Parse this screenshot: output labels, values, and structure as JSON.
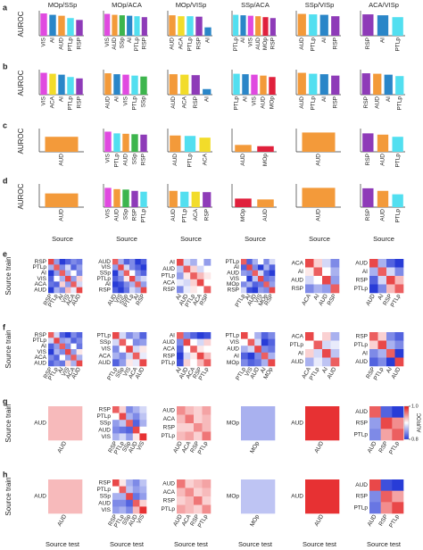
{
  "region_colors": {
    "AUD": "#f39a3a",
    "VIS": "#e04ae0",
    "AI": "#2a86c8",
    "ACA": "#f2dc2a",
    "PTLp": "#52dff0",
    "RSP": "#8e3bb8",
    "SSp": "#3db54d",
    "MOp": "#e0203c"
  },
  "colorbar": {
    "title": "AUROC",
    "lim": [
      0.8,
      1.0
    ],
    "ticks": [
      {
        "value": 1.0,
        "label": "1.0"
      },
      0.8
    ]
  },
  "chart_data": [
    {
      "type": "bar",
      "panel_label": "a",
      "ylabel": "AUROC",
      "title": "MOp/SSp",
      "ylim": [
        0.5,
        1.0
      ],
      "categories": [
        "VIS",
        "AI",
        "AUD",
        "PTLp",
        "RSP"
      ],
      "values": [
        0.98,
        0.95,
        0.93,
        0.88,
        0.84
      ]
    },
    {
      "type": "bar",
      "title": "MOp/ACA",
      "ylim": [
        0.5,
        1.0
      ],
      "categories": [
        "VIS",
        "AUD",
        "SSp",
        "AI",
        "PTLp",
        "RSP"
      ],
      "values": [
        0.97,
        0.95,
        0.94,
        0.93,
        0.92,
        0.9
      ]
    },
    {
      "type": "bar",
      "title": "MOp/VISp",
      "ylim": [
        0.5,
        1.0
      ],
      "categories": [
        "AUD",
        "ACA",
        "PTLp",
        "RSP",
        "AI"
      ],
      "values": [
        0.94,
        0.92,
        0.92,
        0.91,
        0.68
      ]
    },
    {
      "type": "bar",
      "title": "SSp/ACA",
      "ylim": [
        0.5,
        1.0
      ],
      "categories": [
        "PTLp",
        "AI",
        "VIS",
        "AUD",
        "MOp",
        "RSP"
      ],
      "values": [
        0.95,
        0.94,
        0.93,
        0.92,
        0.9,
        0.88
      ]
    },
    {
      "type": "bar",
      "title": "SSp/VISp",
      "ylim": [
        0.5,
        1.0
      ],
      "categories": [
        "AUD",
        "PTLp",
        "AI",
        "RSP"
      ],
      "values": [
        0.97,
        0.96,
        0.95,
        0.92
      ]
    },
    {
      "type": "bar",
      "title": "ACA/VISp",
      "ylim": [
        0.5,
        1.0
      ],
      "categories": [
        "RSP",
        "AI",
        "PTLp"
      ],
      "values": [
        0.96,
        0.94,
        0.9
      ]
    },
    {
      "type": "bar",
      "panel_label": "b",
      "ylabel": "AUROC",
      "ylim": [
        0.5,
        1.0
      ],
      "categories": [
        "VIS",
        "ACA",
        "AI",
        "PTLp",
        "RSP"
      ],
      "values": [
        0.97,
        0.95,
        0.93,
        0.88,
        0.85
      ]
    },
    {
      "type": "bar",
      "ylim": [
        0.5,
        1.0
      ],
      "categories": [
        "AUD",
        "AI",
        "VIS",
        "PTLp",
        "SSp"
      ],
      "values": [
        0.96,
        0.94,
        0.93,
        0.91,
        0.89
      ]
    },
    {
      "type": "bar",
      "ylim": [
        0.5,
        1.0
      ],
      "categories": [
        "AUD",
        "ACA",
        "RSP",
        "AI"
      ],
      "values": [
        0.94,
        0.93,
        0.92,
        0.62
      ]
    },
    {
      "type": "bar",
      "ylim": [
        0.5,
        1.0
      ],
      "categories": [
        "PTLp",
        "AI",
        "VIS",
        "AUD",
        "MOp"
      ],
      "values": [
        0.95,
        0.94,
        0.93,
        0.91,
        0.88
      ]
    },
    {
      "type": "bar",
      "ylim": [
        0.5,
        1.0
      ],
      "categories": [
        "AUD",
        "PTLp",
        "AI",
        "RSP"
      ],
      "values": [
        0.97,
        0.95,
        0.94,
        0.91
      ]
    },
    {
      "type": "bar",
      "ylim": [
        0.5,
        1.0
      ],
      "categories": [
        "RSP",
        "AUD",
        "AI",
        "PTLp"
      ],
      "values": [
        0.96,
        0.95,
        0.93,
        0.9
      ]
    },
    {
      "type": "bar",
      "panel_label": "c",
      "ylabel": "AUROC",
      "ylim": [
        0.5,
        1.0
      ],
      "categories": [
        "AUD"
      ],
      "values": [
        0.85
      ]
    },
    {
      "type": "bar",
      "ylim": [
        0.5,
        1.0
      ],
      "categories": [
        "VIS",
        "PTLp",
        "AUD",
        "SSp",
        "RSP"
      ],
      "values": [
        0.97,
        0.93,
        0.92,
        0.91,
        0.9
      ]
    },
    {
      "type": "bar",
      "ylim": [
        0.5,
        1.0
      ],
      "categories": [
        "AUD",
        "PTLp",
        "ACA"
      ],
      "values": [
        0.88,
        0.87,
        0.83
      ]
    },
    {
      "type": "bar",
      "ylim": [
        0.5,
        1.0
      ],
      "categories": [
        "AUD",
        "MOp"
      ],
      "values": [
        0.66,
        0.63
      ]
    },
    {
      "type": "bar",
      "ylim": [
        0.5,
        1.0
      ],
      "categories": [
        "AUD"
      ],
      "values": [
        0.95
      ]
    },
    {
      "type": "bar",
      "ylim": [
        0.5,
        1.0
      ],
      "categories": [
        "RSP",
        "AUD",
        "PTLp"
      ],
      "values": [
        0.93,
        0.9,
        0.85
      ]
    },
    {
      "type": "bar",
      "panel_label": "d",
      "ylabel": "AUROC",
      "xlabel": "Source",
      "ylim": [
        0.5,
        1.0
      ],
      "categories": [
        "AUD"
      ],
      "values": [
        0.82
      ]
    },
    {
      "type": "bar",
      "xlabel": "Source",
      "ylim": [
        0.5,
        1.0
      ],
      "categories": [
        "VIS",
        "AUD",
        "SSp",
        "RSP",
        "PTLp"
      ],
      "values": [
        0.95,
        0.92,
        0.91,
        0.88,
        0.86
      ]
    },
    {
      "type": "bar",
      "xlabel": "Source",
      "ylim": [
        0.5,
        1.0
      ],
      "categories": [
        "AUD",
        "PTLp",
        "ACA",
        "RSP"
      ],
      "values": [
        0.88,
        0.86,
        0.86,
        0.85
      ]
    },
    {
      "type": "bar",
      "xlabel": "Source",
      "ylim": [
        0.5,
        1.0
      ],
      "categories": [
        "MOp",
        "AUD"
      ],
      "values": [
        0.7,
        0.68
      ]
    },
    {
      "type": "bar",
      "xlabel": "Source",
      "ylim": [
        0.5,
        1.0
      ],
      "categories": [
        "AUD"
      ],
      "values": [
        0.95
      ]
    },
    {
      "type": "bar",
      "xlabel": "Source",
      "ylim": [
        0.5,
        1.0
      ],
      "categories": [
        "RSP",
        "AUD",
        "PTLp"
      ],
      "values": [
        0.94,
        0.88,
        0.8
      ]
    },
    {
      "type": "heatmap",
      "panel_label": "e",
      "ylabel": "Source train",
      "categories": [
        "RSP",
        "PTLp",
        "AI",
        "VIS",
        "ACA",
        "AUD"
      ],
      "values": [
        [
          0.98,
          0.85,
          0.8,
          0.82,
          0.84,
          0.83
        ],
        [
          0.86,
          0.97,
          0.84,
          0.88,
          0.82,
          0.85
        ],
        [
          0.8,
          0.85,
          0.97,
          0.86,
          0.9,
          0.84
        ],
        [
          0.82,
          0.9,
          0.86,
          0.98,
          0.85,
          0.92
        ],
        [
          0.83,
          0.82,
          0.92,
          0.85,
          0.97,
          0.88
        ],
        [
          0.8,
          0.86,
          0.84,
          0.93,
          0.89,
          0.98
        ]
      ]
    },
    {
      "type": "heatmap",
      "categories": [
        "AUD",
        "VIS",
        "SSp",
        "PTLp",
        "AI",
        "RSP"
      ],
      "values": [
        [
          0.97,
          0.86,
          0.82,
          0.84,
          0.8,
          0.82
        ],
        [
          0.85,
          0.98,
          0.88,
          0.84,
          0.82,
          0.8
        ],
        [
          0.8,
          0.86,
          0.97,
          0.9,
          0.84,
          0.82
        ],
        [
          0.82,
          0.84,
          0.91,
          0.98,
          0.86,
          0.88
        ],
        [
          0.8,
          0.81,
          0.84,
          0.86,
          0.97,
          0.85
        ],
        [
          0.82,
          0.8,
          0.83,
          0.88,
          0.86,
          0.98
        ]
      ]
    },
    {
      "type": "heatmap",
      "categories": [
        "AI",
        "AUD",
        "PTLp",
        "ACA",
        "RSP"
      ],
      "values": [
        [
          0.98,
          0.88,
          0.86,
          0.9,
          0.85
        ],
        [
          0.87,
          0.97,
          0.92,
          0.88,
          0.9
        ],
        [
          0.85,
          0.91,
          0.97,
          0.93,
          0.91
        ],
        [
          0.89,
          0.88,
          0.92,
          0.98,
          0.9
        ],
        [
          0.84,
          0.89,
          0.91,
          0.9,
          0.97
        ]
      ]
    },
    {
      "type": "heatmap",
      "categories": [
        "PTLp",
        "AI",
        "AUD",
        "VIS",
        "MOp",
        "RSP"
      ],
      "values": [
        [
          0.97,
          0.82,
          0.86,
          0.9,
          0.84,
          0.88
        ],
        [
          0.82,
          0.98,
          0.84,
          0.8,
          0.86,
          0.82
        ],
        [
          0.85,
          0.84,
          0.97,
          0.88,
          0.82,
          0.8
        ],
        [
          0.9,
          0.8,
          0.87,
          0.98,
          0.83,
          0.84
        ],
        [
          0.84,
          0.86,
          0.82,
          0.83,
          0.97,
          0.85
        ],
        [
          0.88,
          0.81,
          0.8,
          0.85,
          0.84,
          0.98
        ]
      ]
    },
    {
      "type": "heatmap",
      "categories": [
        "ACA",
        "AI",
        "AUD",
        "RSP"
      ],
      "values": [
        [
          0.98,
          0.92,
          0.88,
          0.84
        ],
        [
          0.91,
          0.97,
          0.9,
          0.86
        ],
        [
          0.88,
          0.9,
          0.98,
          0.85
        ],
        [
          0.84,
          0.86,
          0.85,
          0.97
        ]
      ]
    },
    {
      "type": "heatmap",
      "categories": [
        "AUD",
        "AI",
        "RSP",
        "PTLp"
      ],
      "values": [
        [
          0.98,
          0.86,
          0.82,
          0.8
        ],
        [
          0.86,
          0.97,
          0.88,
          0.84
        ],
        [
          0.82,
          0.88,
          0.98,
          0.93
        ],
        [
          0.8,
          0.84,
          0.93,
          0.97
        ]
      ]
    },
    {
      "type": "heatmap",
      "panel_label": "f",
      "ylabel": "Source train",
      "categories": [
        "RSP",
        "PTLp",
        "AI",
        "VIS",
        "ACA",
        "AUD"
      ],
      "values": [
        [
          0.97,
          0.88,
          0.82,
          0.8,
          0.84,
          0.82
        ],
        [
          0.88,
          0.98,
          0.85,
          0.86,
          0.82,
          0.84
        ],
        [
          0.82,
          0.85,
          0.97,
          0.84,
          0.9,
          0.83
        ],
        [
          0.8,
          0.86,
          0.84,
          0.98,
          0.85,
          0.91
        ],
        [
          0.84,
          0.82,
          0.9,
          0.85,
          0.97,
          0.86
        ],
        [
          0.82,
          0.84,
          0.83,
          0.92,
          0.86,
          0.98
        ]
      ]
    },
    {
      "type": "heatmap",
      "categories": [
        "PTLp",
        "SSp",
        "VIS",
        "ACA",
        "AUD"
      ],
      "values": [
        [
          0.98,
          0.88,
          0.84,
          0.86,
          0.82
        ],
        [
          0.88,
          0.97,
          0.9,
          0.84,
          0.85
        ],
        [
          0.84,
          0.9,
          0.98,
          0.88,
          0.91
        ],
        [
          0.86,
          0.84,
          0.88,
          0.97,
          0.89
        ],
        [
          0.82,
          0.85,
          0.91,
          0.89,
          0.98
        ]
      ]
    },
    {
      "type": "heatmap",
      "categories": [
        "AI",
        "AUD",
        "ACA",
        "RSP",
        "PTLp"
      ],
      "values": [
        [
          0.97,
          0.84,
          0.82,
          0.8,
          0.81
        ],
        [
          0.84,
          0.98,
          0.9,
          0.88,
          0.92
        ],
        [
          0.82,
          0.9,
          0.97,
          0.91,
          0.9
        ],
        [
          0.8,
          0.88,
          0.91,
          0.98,
          0.93
        ],
        [
          0.81,
          0.92,
          0.9,
          0.93,
          0.97
        ]
      ]
    },
    {
      "type": "heatmap",
      "categories": [
        "PTLp",
        "VIS",
        "AUD",
        "AI",
        "MOp"
      ],
      "values": [
        [
          0.98,
          0.9,
          0.86,
          0.82,
          0.84
        ],
        [
          0.9,
          0.97,
          0.88,
          0.8,
          0.82
        ],
        [
          0.86,
          0.88,
          0.98,
          0.84,
          0.83
        ],
        [
          0.82,
          0.8,
          0.84,
          0.97,
          0.86
        ],
        [
          0.84,
          0.82,
          0.83,
          0.86,
          0.98
        ]
      ]
    },
    {
      "type": "heatmap",
      "categories": [
        "ACA",
        "PTLp",
        "AI",
        "AUD"
      ],
      "values": [
        [
          0.98,
          0.9,
          0.92,
          0.86
        ],
        [
          0.9,
          0.97,
          0.88,
          0.89
        ],
        [
          0.92,
          0.88,
          0.98,
          0.87
        ],
        [
          0.86,
          0.89,
          0.87,
          0.97
        ]
      ]
    },
    {
      "type": "heatmap",
      "categories": [
        "RSP",
        "PTLp",
        "AI",
        "AUD"
      ],
      "values": [
        [
          0.97,
          0.92,
          0.84,
          0.82
        ],
        [
          0.92,
          0.98,
          0.86,
          0.84
        ],
        [
          0.84,
          0.86,
          0.97,
          0.8
        ],
        [
          0.82,
          0.84,
          0.8,
          0.98
        ]
      ]
    },
    {
      "type": "heatmap",
      "panel_label": "g",
      "ylabel": "Source train",
      "categories": [
        "AUD"
      ],
      "values": [
        [
          0.93
        ]
      ]
    },
    {
      "type": "heatmap",
      "categories": [
        "RSP",
        "PTLp",
        "SSp",
        "AUD",
        "VIS"
      ],
      "values": [
        [
          0.97,
          0.92,
          0.84,
          0.86,
          0.88
        ],
        [
          0.9,
          0.98,
          0.86,
          0.84,
          0.87
        ],
        [
          0.85,
          0.87,
          0.97,
          0.82,
          0.86
        ],
        [
          0.84,
          0.83,
          0.82,
          0.98,
          0.9
        ],
        [
          0.86,
          0.88,
          0.85,
          0.91,
          0.99
        ]
      ]
    },
    {
      "type": "heatmap",
      "categories": [
        "AUD",
        "ACA",
        "RSP",
        "PTLp"
      ],
      "values": [
        [
          0.95,
          0.93,
          0.92,
          0.94
        ],
        [
          0.93,
          0.96,
          0.92,
          0.93
        ],
        [
          0.92,
          0.92,
          0.95,
          0.93
        ],
        [
          0.93,
          0.94,
          0.92,
          0.96
        ]
      ]
    },
    {
      "type": "heatmap",
      "categories": [
        "MOp"
      ],
      "values": [
        [
          0.86
        ]
      ]
    },
    {
      "type": "heatmap",
      "categories": [
        "AUD"
      ],
      "values": [
        [
          0.99
        ]
      ]
    },
    {
      "type": "heatmap",
      "categories": [
        "AUD",
        "RSP",
        "PTLp"
      ],
      "values": [
        [
          0.97,
          0.82,
          0.8
        ],
        [
          0.85,
          0.98,
          0.95
        ],
        [
          0.84,
          0.94,
          0.97
        ]
      ]
    },
    {
      "type": "heatmap",
      "panel_label": "h",
      "ylabel": "Source train",
      "xlabel": "Source test",
      "categories": [
        "AUD"
      ],
      "values": [
        [
          0.93
        ]
      ]
    },
    {
      "type": "heatmap",
      "xlabel": "Source test",
      "categories": [
        "RSP",
        "PTLp",
        "SSp",
        "AUD",
        "VIS"
      ],
      "values": [
        [
          0.98,
          0.91,
          0.86,
          0.84,
          0.87
        ],
        [
          0.9,
          0.97,
          0.87,
          0.85,
          0.86
        ],
        [
          0.86,
          0.86,
          0.98,
          0.83,
          0.85
        ],
        [
          0.84,
          0.84,
          0.82,
          0.97,
          0.92
        ],
        [
          0.85,
          0.86,
          0.84,
          0.93,
          0.99
        ]
      ]
    },
    {
      "type": "heatmap",
      "xlabel": "Source test",
      "categories": [
        "AUD",
        "ACA",
        "RSP",
        "PTLp"
      ],
      "values": [
        [
          0.96,
          0.92,
          0.93,
          0.94
        ],
        [
          0.93,
          0.95,
          0.92,
          0.93
        ],
        [
          0.92,
          0.93,
          0.96,
          0.92
        ],
        [
          0.94,
          0.93,
          0.92,
          0.95
        ]
      ]
    },
    {
      "type": "heatmap",
      "xlabel": "Source test",
      "categories": [
        "MOp"
      ],
      "values": [
        [
          0.87
        ]
      ]
    },
    {
      "type": "heatmap",
      "xlabel": "Source test",
      "categories": [
        "AUD"
      ],
      "values": [
        [
          0.99
        ]
      ]
    },
    {
      "type": "heatmap",
      "xlabel": "Source test",
      "categories": [
        "AUD",
        "RSP",
        "PTLp"
      ],
      "values": [
        [
          0.98,
          0.81,
          0.8
        ],
        [
          0.84,
          0.97,
          0.94
        ],
        [
          0.83,
          0.95,
          0.98
        ]
      ]
    }
  ]
}
